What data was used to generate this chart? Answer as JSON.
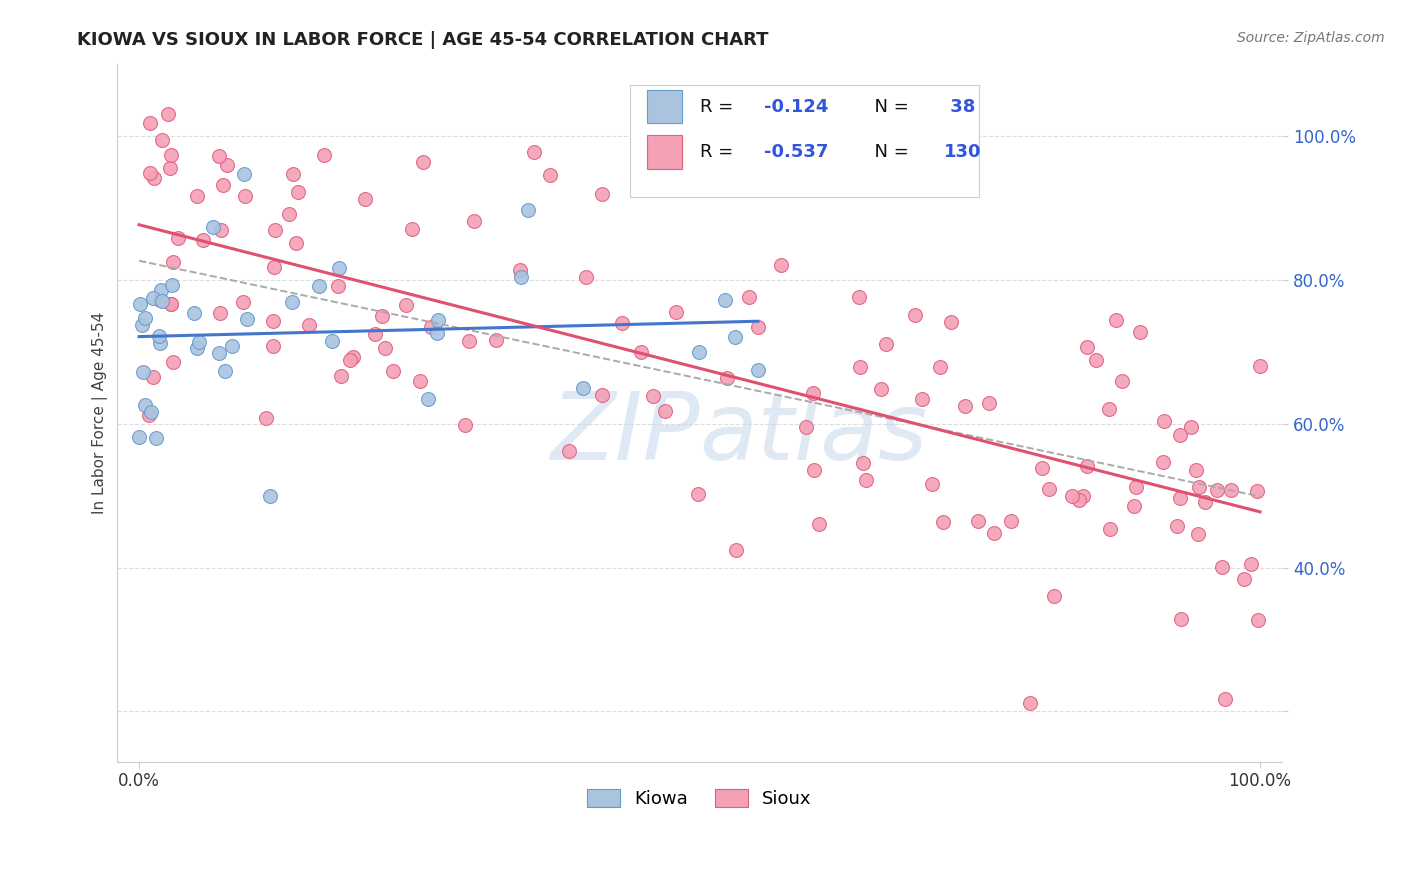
{
  "title": "KIOWA VS SIOUX IN LABOR FORCE | AGE 45-54 CORRELATION CHART",
  "source": "Source: ZipAtlas.com",
  "ylabel": "In Labor Force | Age 45-54",
  "kiowa_color": "#aac4e0",
  "sioux_color": "#f4a0b5",
  "kiowa_edge": "#6699cc",
  "sioux_edge": "#e06080",
  "trend_kiowa": "#4477cc",
  "trend_sioux": "#e05070",
  "trend_all": "#aaaaaa",
  "watermark": "ZIPatlas",
  "grid_color": "#dddddd",
  "background": "#ffffff",
  "title_color": "#222222",
  "source_color": "#777777",
  "tick_color_x": "#333333",
  "tick_color_y": "#3366cc",
  "legend_r_color": "#3355dd",
  "legend_text_color": "#111111",
  "xlim": [
    -0.02,
    1.02
  ],
  "ylim": [
    0.13,
    1.1
  ],
  "yticks": [
    0.2,
    0.4,
    0.6,
    0.8,
    1.0
  ],
  "ytick_labels": [
    "",
    "40.0%",
    "60.0%",
    "80.0%",
    "100.0%"
  ],
  "xticks": [
    0.0,
    1.0
  ],
  "xtick_labels": [
    "0.0%",
    "100.0%"
  ],
  "marker_size": 100,
  "seed": 12
}
